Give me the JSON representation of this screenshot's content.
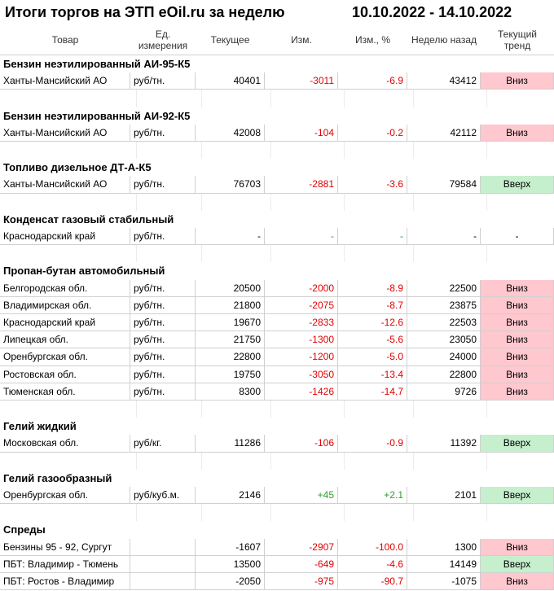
{
  "header": {
    "title": "Итоги торгов на ЭТП eOil.ru за неделю",
    "period": "10.10.2022 - 14.10.2022"
  },
  "table": {
    "columns": [
      "Товар",
      "Ед. измерения",
      "Текущее",
      "Изм.",
      "Изм., %",
      "Неделю назад",
      "Текущий тренд"
    ],
    "groups": [
      {
        "name": "Бензин неэтилированный АИ-95-К5",
        "rows": [
          {
            "cells": [
              "Ханты-Мансийский АО",
              "руб/тн.",
              "40401",
              "-3011",
              "-6.9",
              "43412",
              "Вниз"
            ],
            "change_color": "#e00000",
            "trend_fill": "#ffc7ce"
          }
        ]
      },
      {
        "name": "Бензин неэтилированный АИ-92-К5",
        "rows": [
          {
            "cells": [
              "Ханты-Мансийский АО",
              "руб/тн.",
              "42008",
              "-104",
              "-0.2",
              "42112",
              "Вниз"
            ],
            "change_color": "#e00000",
            "trend_fill": "#ffc7ce"
          }
        ]
      },
      {
        "name": "Топливо дизельное ДТ-А-К5",
        "rows": [
          {
            "cells": [
              "Ханты-Мансийский АО",
              "руб/тн.",
              "76703",
              "-2881",
              "-3.6",
              "79584",
              "Вверх"
            ],
            "change_color": "#e00000",
            "trend_fill": "#c6efce"
          }
        ]
      },
      {
        "name": "Конденсат газовый стабильный",
        "rows": [
          {
            "cells": [
              "Краснодарский край",
              "руб/тн.",
              "-",
              "-",
              "-",
              "-",
              "-"
            ],
            "change_color": "#2e9e2e",
            "trend_fill": "#ffffff"
          }
        ]
      },
      {
        "name": "Пропан-бутан автомобильный",
        "rows": [
          {
            "cells": [
              "Белгородская обл.",
              "руб/тн.",
              "20500",
              "-2000",
              "-8.9",
              "22500",
              "Вниз"
            ],
            "change_color": "#e00000",
            "trend_fill": "#ffc7ce"
          },
          {
            "cells": [
              "Владимирская обл.",
              "руб/тн.",
              "21800",
              "-2075",
              "-8.7",
              "23875",
              "Вниз"
            ],
            "change_color": "#e00000",
            "trend_fill": "#ffc7ce"
          },
          {
            "cells": [
              "Краснодарский край",
              "руб/тн.",
              "19670",
              "-2833",
              "-12.6",
              "22503",
              "Вниз"
            ],
            "change_color": "#e00000",
            "trend_fill": "#ffc7ce"
          },
          {
            "cells": [
              "Липецкая обл.",
              "руб/тн.",
              "21750",
              "-1300",
              "-5.6",
              "23050",
              "Вниз"
            ],
            "change_color": "#e00000",
            "trend_fill": "#ffc7ce"
          },
          {
            "cells": [
              "Оренбургская обл.",
              "руб/тн.",
              "22800",
              "-1200",
              "-5.0",
              "24000",
              "Вниз"
            ],
            "change_color": "#e00000",
            "trend_fill": "#ffc7ce"
          },
          {
            "cells": [
              "Ростовская обл.",
              "руб/тн.",
              "19750",
              "-3050",
              "-13.4",
              "22800",
              "Вниз"
            ],
            "change_color": "#e00000",
            "trend_fill": "#ffc7ce"
          },
          {
            "cells": [
              "Тюменская обл.",
              "руб/тн.",
              "8300",
              "-1426",
              "-14.7",
              "9726",
              "Вниз"
            ],
            "change_color": "#e00000",
            "trend_fill": "#ffc7ce"
          }
        ]
      },
      {
        "name": "Гелий жидкий",
        "rows": [
          {
            "cells": [
              "Московская обл.",
              "руб/кг.",
              "11286",
              "-106",
              "-0.9",
              "11392",
              "Вверх"
            ],
            "change_color": "#e00000",
            "trend_fill": "#c6efce"
          }
        ]
      },
      {
        "name": "Гелий газообразный",
        "rows": [
          {
            "cells": [
              "Оренбургская обл.",
              "руб/куб.м.",
              "2146",
              "+45",
              "+2.1",
              "2101",
              "Вверх"
            ],
            "change_color": "#2e9e2e",
            "trend_fill": "#c6efce"
          }
        ]
      },
      {
        "name": "Спреды",
        "rows": [
          {
            "cells": [
              "Бензины 95 - 92, Сургут",
              "",
              "-1607",
              "-2907",
              "-100.0",
              "1300",
              "Вниз"
            ],
            "change_color": "#e00000",
            "trend_fill": "#ffc7ce"
          },
          {
            "cells": [
              "ПБТ: Владимир - Тюмень",
              "",
              "13500",
              "-649",
              "-4.6",
              "14149",
              "Вверх"
            ],
            "change_color": "#e00000",
            "trend_fill": "#c6efce"
          },
          {
            "cells": [
              "ПБТ: Ростов - Владимир",
              "",
              "-2050",
              "-975",
              "-90.7",
              "-1075",
              "Вниз"
            ],
            "change_color": "#e00000",
            "trend_fill": "#ffc7ce"
          }
        ]
      }
    ]
  }
}
